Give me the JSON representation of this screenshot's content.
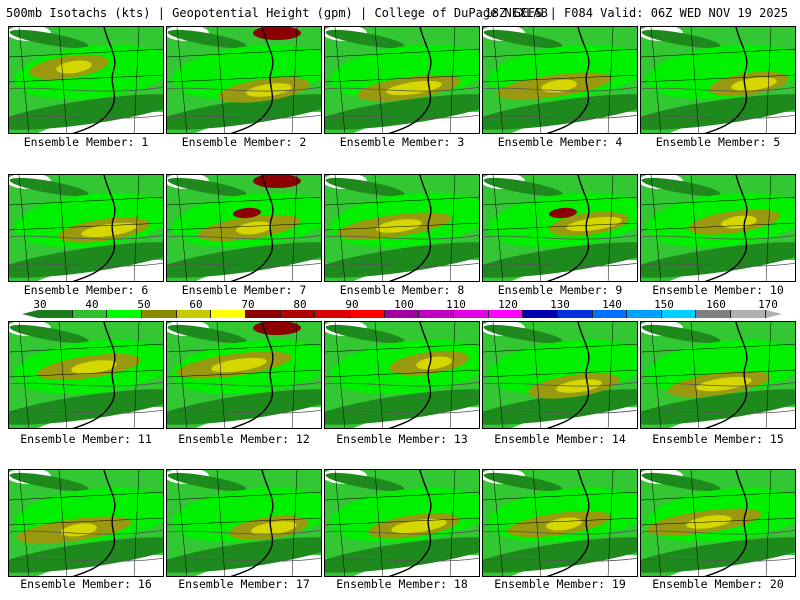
{
  "header": {
    "left": "500mb Isotachs (kts) | Geopotential Height (gpm) | College of DuPage NEXLAB",
    "right": "18Z GEFS | F084 Valid: 06Z WED NOV 19 2025"
  },
  "colorbar": {
    "ticks": [
      "30",
      "40",
      "50",
      "60",
      "70",
      "80",
      "90",
      "100",
      "110",
      "120",
      "130",
      "140",
      "150",
      "160",
      "170"
    ],
    "colors": [
      "#1e7a1e",
      "#2fbf2f",
      "#00ff00",
      "#8a8a00",
      "#c9c900",
      "#ffff00",
      "#8b0000",
      "#b00000",
      "#d80000",
      "#ff0000",
      "#a000a0",
      "#c000c0",
      "#e000e0",
      "#ff00ff",
      "#0000b0",
      "#0030e0",
      "#0070ff",
      "#00a0ff",
      "#00d0ff",
      "#808080",
      "#b0b0b0"
    ]
  },
  "members": [
    {
      "label": "Ensemble Member: 1"
    },
    {
      "label": "Ensemble Member: 2"
    },
    {
      "label": "Ensemble Member: 3"
    },
    {
      "label": "Ensemble Member: 4"
    },
    {
      "label": "Ensemble Member: 5"
    },
    {
      "label": "Ensemble Member: 6"
    },
    {
      "label": "Ensemble Member: 7"
    },
    {
      "label": "Ensemble Member: 8"
    },
    {
      "label": "Ensemble Member: 9"
    },
    {
      "label": "Ensemble Member: 10"
    },
    {
      "label": "Ensemble Member: 11"
    },
    {
      "label": "Ensemble Member: 12"
    },
    {
      "label": "Ensemble Member: 13"
    },
    {
      "label": "Ensemble Member: 14"
    },
    {
      "label": "Ensemble Member: 15"
    },
    {
      "label": "Ensemble Member: 16"
    },
    {
      "label": "Ensemble Member: 17"
    },
    {
      "label": "Ensemble Member: 18"
    },
    {
      "label": "Ensemble Member: 19"
    },
    {
      "label": "Ensemble Member: 20"
    }
  ]
}
